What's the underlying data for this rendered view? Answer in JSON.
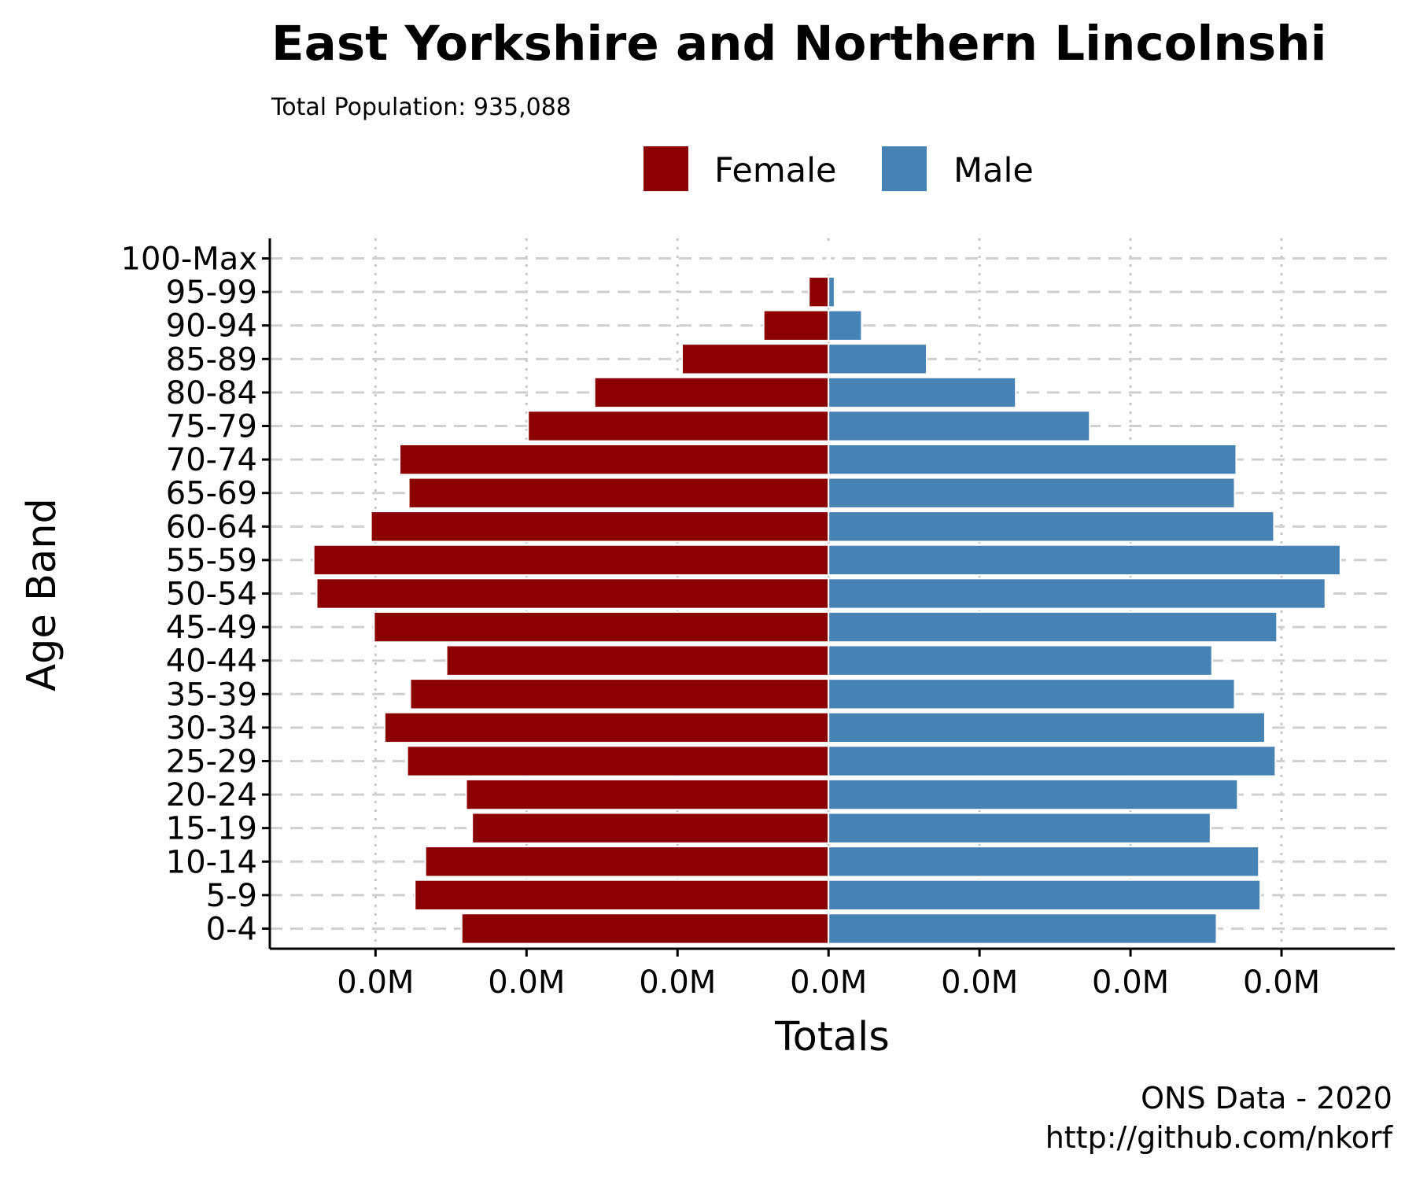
{
  "chart_data": {
    "type": "bar",
    "orientation": "horizontal-pyramid",
    "title": "East Yorkshire and Northern Lincolnshi",
    "subtitle": "Total Population:  935,088",
    "xlabel": "Totals",
    "ylabel": "Age Band",
    "categories": [
      "0-4",
      "5-9",
      "10-14",
      "15-19",
      "20-24",
      "25-29",
      "30-34",
      "35-39",
      "40-44",
      "45-49",
      "50-54",
      "55-59",
      "60-64",
      "65-69",
      "70-74",
      "75-79",
      "80-84",
      "85-89",
      "90-94",
      "95-99",
      "100-Max"
    ],
    "series": [
      {
        "name": "Female",
        "color": "#8b0000",
        "values": [
          -24300,
          -27400,
          -26700,
          -23600,
          -24000,
          -27900,
          -29400,
          -27700,
          -25300,
          -30100,
          -33900,
          -34100,
          -30300,
          -27800,
          -28400,
          -19900,
          -15500,
          -9700,
          -4300,
          -1300,
          -100
        ]
      },
      {
        "name": "Male",
        "color": "#4682b4",
        "values": [
          25700,
          28600,
          28500,
          25300,
          27100,
          29600,
          28900,
          26900,
          25400,
          29700,
          32900,
          33900,
          29500,
          26900,
          27000,
          17300,
          12400,
          6500,
          2200,
          400,
          0
        ]
      }
    ],
    "xlim": [
      -37000,
      37500
    ],
    "xticks": [
      -30000,
      -20000,
      -10000,
      0,
      10000,
      20000,
      30000
    ],
    "xtick_labels": [
      "0.0M",
      "0.0M",
      "0.0M",
      "0.0M",
      "0.0M",
      "0.0M",
      "0.0M"
    ],
    "legend_position": "top",
    "grid": {
      "vertical": "dotted",
      "horizontal": "dashed"
    }
  },
  "caption": {
    "line1": "ONS Data - 2020",
    "line2": "http://github.com/nkorf"
  }
}
